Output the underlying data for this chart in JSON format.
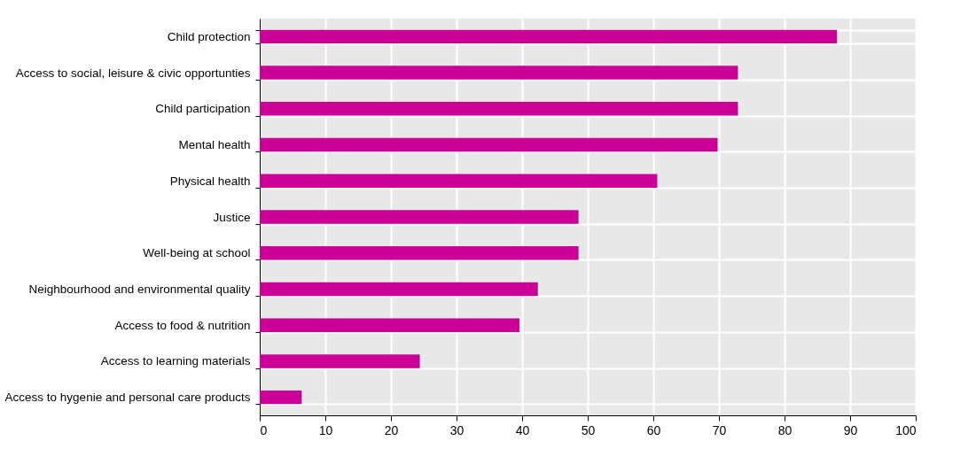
{
  "chart_data": {
    "type": "bar",
    "orientation": "horizontal",
    "categories": [
      "Child protection",
      "Access to social, leisure & civic opportunties",
      "Child participation",
      "Mental health",
      "Physical health",
      "Justice",
      "Well-being at school",
      "Neighbourhood and environmental quality",
      "Access to food & nutrition",
      "Access to learning materials",
      "Access to hygenie and personal care products"
    ],
    "values": [
      88,
      72.9,
      72.9,
      69.8,
      60.6,
      48.6,
      48.6,
      42.4,
      39.6,
      24.4,
      6.4
    ],
    "color": "#cc0099",
    "xlim": [
      0,
      100
    ],
    "xticks": [
      0,
      10,
      20,
      30,
      40,
      50,
      60,
      70,
      80,
      90,
      100
    ],
    "grid": true
  }
}
